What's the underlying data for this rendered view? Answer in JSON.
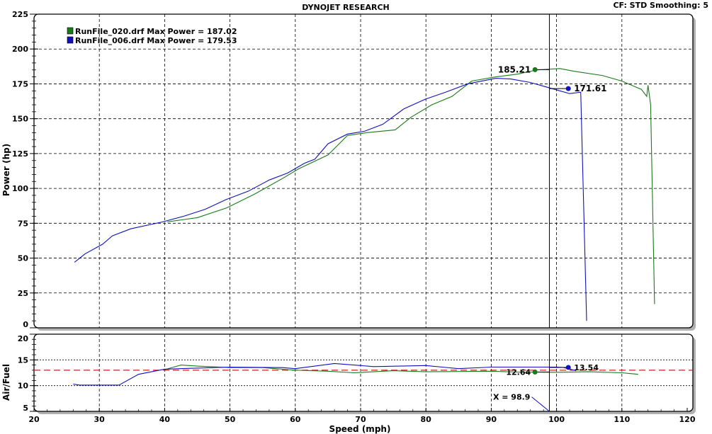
{
  "header": {
    "title": "DYNOJET RESEARCH",
    "settings": "CF: STD  Smoothing: 5"
  },
  "chart_data": [
    {
      "type": "line",
      "ylabel": "Power (hp)",
      "xlim": [
        20,
        120
      ],
      "ylim": [
        0,
        225
      ],
      "yticks": [
        0,
        25,
        50,
        75,
        100,
        125,
        150,
        175,
        200,
        225
      ],
      "grid": true,
      "legend_position": "top-left",
      "series": [
        {
          "name": "RunFile_020.drf Max Power = 187.02",
          "color": "#1a7a1a",
          "x": [
            40.4,
            45,
            49.5,
            53.8,
            58,
            60.5,
            65,
            68,
            71,
            75.3,
            77.7,
            80.9,
            84,
            87,
            90.7,
            94,
            97,
            100.5,
            102.7,
            107,
            110,
            113,
            113.8,
            114,
            114.4,
            115
          ],
          "y": [
            76,
            79,
            86,
            96,
            107,
            114,
            124,
            138,
            140,
            142,
            151,
            160,
            166,
            177,
            180,
            182,
            185,
            186,
            184,
            181,
            177,
            171,
            166,
            174,
            160,
            17
          ]
        },
        {
          "name": "RunFile_006.drf Max Power = 179.53",
          "color": "#1010c0",
          "x": [
            26.2,
            27.8,
            30.5,
            32,
            34.8,
            39.7,
            42.9,
            46.2,
            49.4,
            52.8,
            56,
            58.8,
            61.4,
            63,
            65,
            68,
            70.6,
            73.4,
            76.6,
            79.9,
            83,
            86.4,
            90.7,
            93,
            96,
            100.5,
            102,
            103.7,
            104.6
          ],
          "y": [
            47,
            53,
            60,
            66,
            71,
            76,
            80,
            85,
            92,
            98,
            106,
            111,
            118,
            121,
            132,
            139,
            141,
            146,
            157,
            164,
            169,
            175,
            179,
            178.5,
            176,
            170,
            168,
            169,
            5
          ]
        }
      ],
      "markers": [
        {
          "x": 96.7,
          "y": 185.21,
          "label": "185.21",
          "color": "#1a7a1a"
        },
        {
          "x": 101.8,
          "y": 171.61,
          "label": "171.61",
          "color": "#1010c0"
        }
      ],
      "cursor_x": 98.9
    },
    {
      "type": "line",
      "ylabel": "Air/Fuel",
      "xlabel": "Speed (mph)",
      "xlim": [
        20,
        120
      ],
      "ylim": [
        5,
        20
      ],
      "xticks": [
        20,
        30,
        40,
        50,
        60,
        70,
        80,
        90,
        100,
        110,
        120
      ],
      "yticks": [
        5,
        10,
        15,
        20
      ],
      "reference_line": {
        "y": 13,
        "color": "#d02020"
      },
      "series": [
        {
          "color": "#1a7a1a",
          "x": [
            40,
            42.5,
            45,
            50,
            55,
            60,
            65,
            69,
            75,
            80,
            90,
            95,
            96.7,
            100,
            105,
            110,
            112.5
          ],
          "y": [
            13.1,
            14.0,
            13.8,
            13.5,
            13.5,
            13.0,
            12.8,
            12.5,
            12.9,
            12.7,
            12.8,
            12.6,
            12.64,
            12.6,
            12.7,
            12.5,
            12.2
          ]
        },
        {
          "color": "#1010c0",
          "x": [
            26,
            27,
            33,
            36,
            40,
            45,
            50,
            58,
            60,
            66,
            72,
            80,
            85,
            90,
            100,
            101,
            103
          ],
          "y": [
            10.3,
            10.1,
            10.1,
            12.2,
            13.2,
            13.4,
            13.6,
            13.5,
            13.3,
            14.3,
            13.7,
            13.9,
            13.3,
            13.6,
            13.6,
            13.54,
            12.9
          ]
        }
      ],
      "markers": [
        {
          "x": 96.7,
          "y": 12.64,
          "label": "12.64",
          "color": "#1a7a1a"
        },
        {
          "x": 101.8,
          "y": 13.54,
          "label": "13.54",
          "color": "#1010c0"
        }
      ],
      "cursor_label": "X = 98.9"
    }
  ]
}
